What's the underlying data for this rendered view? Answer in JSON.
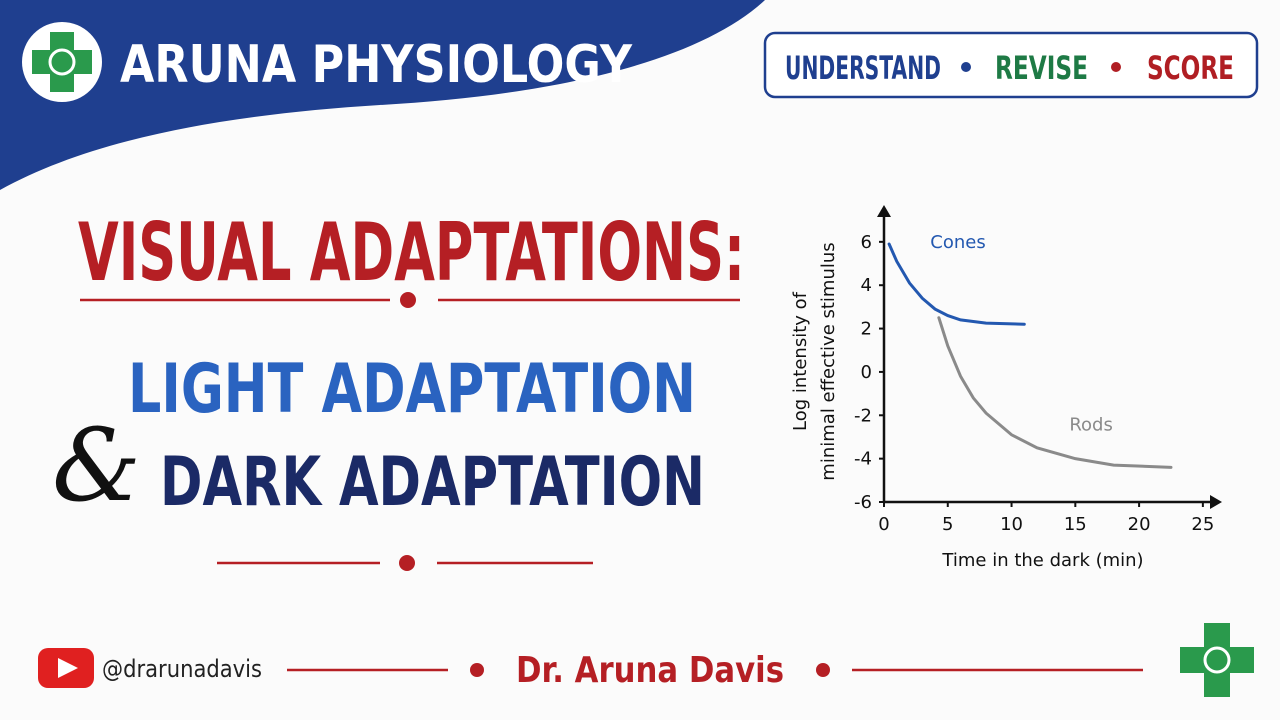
{
  "header": {
    "title": "ARUNA PHYSIOLOGY",
    "tagline": [
      "UNDERSTAND",
      "REVISE",
      "SCORE"
    ]
  },
  "main": {
    "title": "VISUAL ADAPTATIONS:",
    "line1": "LIGHT ADAPTATION",
    "ampersand": "&",
    "line2": "DARK ADAPTATION"
  },
  "footer": {
    "handle": "@drarunadavis",
    "author": "Dr. Aruna Davis"
  },
  "chart_data": {
    "type": "line",
    "xlabel": "Time in the dark (min)",
    "ylabel": [
      "Log intensity of",
      "minimal effective stimulus"
    ],
    "xlim": [
      0,
      26.5
    ],
    "ylim": [
      -6,
      7.7
    ],
    "xticks": [
      0,
      5,
      10,
      15,
      20,
      25
    ],
    "yticks": [
      -6,
      -4,
      -2,
      0,
      2,
      4,
      6
    ],
    "series": [
      {
        "name": "Cones",
        "color": "#2358b0",
        "x": [
          0.4,
          1,
          2,
          3,
          4,
          5,
          6,
          8,
          11
        ],
        "values": [
          5.9,
          5.1,
          4.1,
          3.4,
          2.9,
          2.6,
          2.4,
          2.25,
          2.2
        ]
      },
      {
        "name": "Rods",
        "color": "#8a8a8a",
        "x": [
          4.3,
          5,
          6,
          7,
          8,
          10,
          12,
          15,
          18,
          22.5
        ],
        "values": [
          2.5,
          1.2,
          -0.2,
          -1.2,
          -1.9,
          -2.9,
          -3.5,
          -4.0,
          -4.3,
          -4.4
        ]
      }
    ]
  }
}
